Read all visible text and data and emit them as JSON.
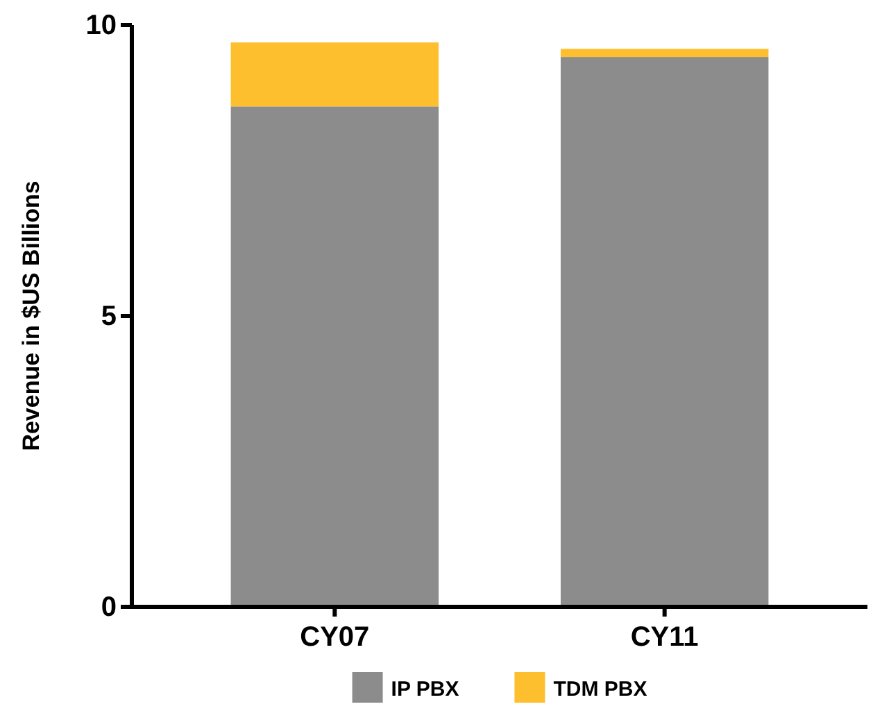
{
  "chart_data": {
    "type": "bar",
    "ylabel": "Revenue in $US Billions",
    "categories": [
      "CY07",
      "CY11"
    ],
    "stacked": true,
    "series": [
      {
        "name": "IP PBX",
        "color": "#8c8c8c",
        "values": [
          8.6,
          9.45
        ]
      },
      {
        "name": "TDM PBX",
        "color": "#fdbf2d",
        "values": [
          1.1,
          0.14
        ]
      }
    ],
    "ylim": [
      0,
      10
    ],
    "yticks": [
      0,
      5,
      10
    ],
    "grid": false,
    "legend": "bottom"
  }
}
